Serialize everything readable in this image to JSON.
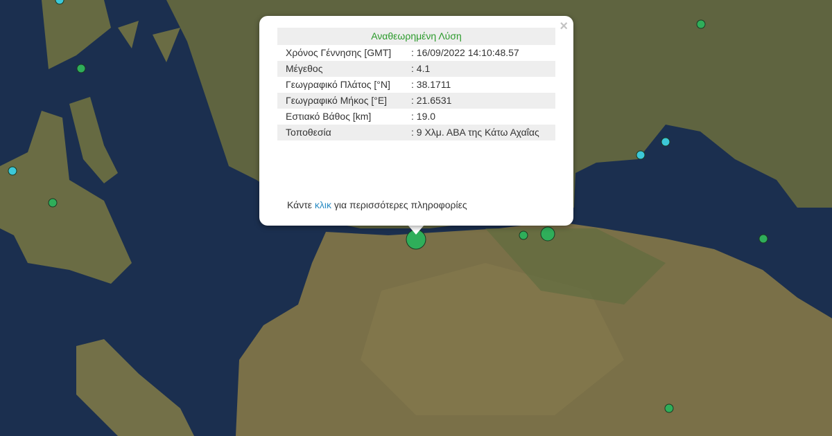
{
  "popup": {
    "title": "Αναθεωρημένη Λύση",
    "close_label": "×",
    "rows": [
      {
        "label": "Χρόνος Γέννησης [GMT]",
        "value": ": 16/09/2022 14:10:48.57"
      },
      {
        "label": "Μέγεθος",
        "value": ": 4.1"
      },
      {
        "label": "Γεωγραφικό Πλάτος [°N]",
        "value": ": 38.1711"
      },
      {
        "label": "Γεωγραφικό Μήκος [°E]",
        "value": ": 21.6531"
      },
      {
        "label": "Εστιακό Βάθος [km]",
        "value": ": 19.0"
      },
      {
        "label": "Τοποθεσία",
        "value": ": 9 Χλμ. ΑΒΑ της Κάτω Αχαΐας"
      }
    ],
    "more_prefix": "Κάντε ",
    "more_link": "κλικ",
    "more_suffix": " για περισσότερες πληροφορίες"
  },
  "colors": {
    "sea": "#1b2f4f",
    "land": "#6e6a45",
    "marker_green": "#2fae5a",
    "marker_cyan": "#3cc8d8"
  },
  "markers": [
    {
      "type": "green",
      "size": "large"
    },
    {
      "type": "green",
      "size": "small"
    },
    {
      "type": "green",
      "size": "medium"
    },
    {
      "type": "green",
      "size": "small"
    },
    {
      "type": "green",
      "size": "small"
    },
    {
      "type": "green",
      "size": "small"
    },
    {
      "type": "green",
      "size": "small"
    },
    {
      "type": "green",
      "size": "small"
    },
    {
      "type": "cyan",
      "size": "small"
    },
    {
      "type": "cyan",
      "size": "small"
    },
    {
      "type": "cyan",
      "size": "small"
    },
    {
      "type": "cyan",
      "size": "small"
    }
  ]
}
